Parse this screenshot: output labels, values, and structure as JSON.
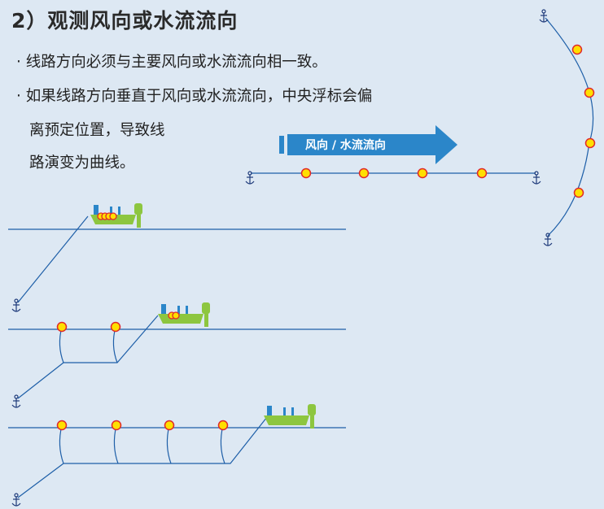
{
  "title": "2）观测风向或水流流向",
  "bullets": [
    "· 线路方向必须与主要风向或水流流向相一致。",
    "· 如果线路方向垂直于风向或水流流向，中央浮标会偏"
  ],
  "bullet_continuation": [
    "离预定位置，导致线",
    "路演变为曲线。"
  ],
  "arrow_label": "风向 / 水流流向",
  "colors": {
    "background": "#dde8f3",
    "line": "#1e5fa8",
    "arrow": "#2b86c9",
    "buoy_fill": "#ffdf00",
    "buoy_stroke": "#e0282a",
    "boat": "#8dc63f"
  },
  "icons": [
    "anchor-icon",
    "buoy-icon",
    "boat-icon",
    "direction-arrow"
  ]
}
